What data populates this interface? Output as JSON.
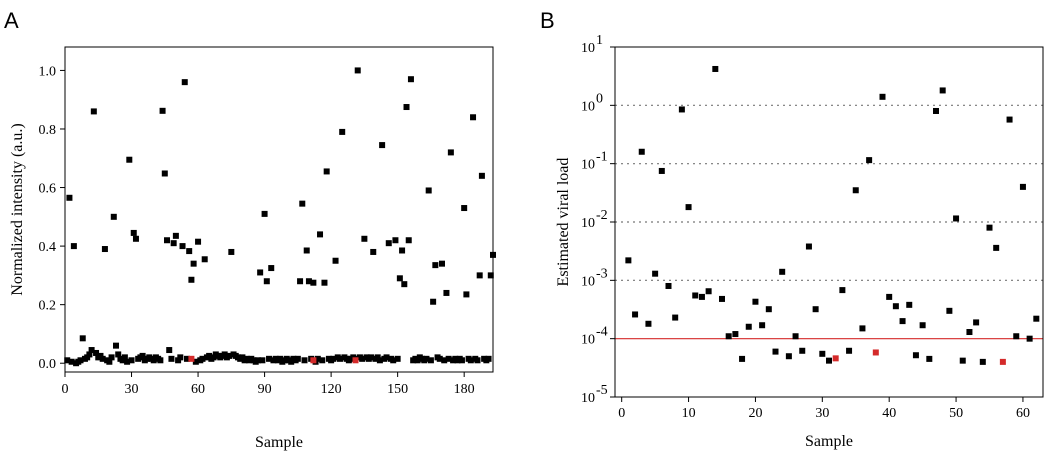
{
  "chart_data": [
    {
      "panel": "A",
      "type": "scatter",
      "xlabel": "Sample",
      "ylabel": "Normalized intensity (a.u.)",
      "xlim": [
        0,
        193
      ],
      "ylim": [
        -0.03,
        1.08
      ],
      "xticks": [
        0,
        30,
        60,
        90,
        120,
        150,
        180
      ],
      "yticks": [
        0.0,
        0.2,
        0.4,
        0.6,
        0.8,
        1.0
      ],
      "ytick_labels": [
        "0.0",
        "0.2",
        "0.4",
        "0.6",
        "0.8",
        "1.0"
      ],
      "marker_color": "#000000",
      "highlight_color": "#d42a2a",
      "series": [
        {
          "values": [
            [
              2,
              0.565
            ],
            [
              4,
              0.4
            ],
            [
              8,
              0.085
            ],
            [
              13,
              0.86
            ],
            [
              18,
              0.39
            ],
            [
              22,
              0.5
            ],
            [
              23,
              0.06
            ],
            [
              29,
              0.695
            ],
            [
              31,
              0.445
            ],
            [
              32,
              0.425
            ],
            [
              44,
              0.862
            ],
            [
              45,
              0.648
            ],
            [
              46,
              0.42
            ],
            [
              49,
              0.41
            ],
            [
              50,
              0.435
            ],
            [
              53,
              0.4
            ],
            [
              54,
              0.96
            ],
            [
              56,
              0.383
            ],
            [
              57,
              0.285
            ],
            [
              58,
              0.34
            ],
            [
              60,
              0.415
            ],
            [
              63,
              0.355
            ],
            [
              75,
              0.38
            ],
            [
              88,
              0.31
            ],
            [
              90,
              0.51
            ],
            [
              91,
              0.28
            ],
            [
              93,
              0.325
            ],
            [
              106,
              0.28
            ],
            [
              107,
              0.545
            ],
            [
              109,
              0.385
            ],
            [
              110,
              0.28
            ],
            [
              112,
              0.275
            ],
            [
              115,
              0.44
            ],
            [
              117,
              0.275
            ],
            [
              118,
              0.655
            ],
            [
              122,
              0.35
            ],
            [
              125,
              0.79
            ],
            [
              132,
              1.0
            ],
            [
              135,
              0.425
            ],
            [
              139,
              0.38
            ],
            [
              143,
              0.745
            ],
            [
              146,
              0.41
            ],
            [
              149,
              0.42
            ],
            [
              151,
              0.29
            ],
            [
              152,
              0.385
            ],
            [
              153,
              0.27
            ],
            [
              154,
              0.875
            ],
            [
              155,
              0.42
            ],
            [
              156,
              0.97
            ],
            [
              164,
              0.59
            ],
            [
              166,
              0.21
            ],
            [
              167,
              0.335
            ],
            [
              170,
              0.34
            ],
            [
              172,
              0.24
            ],
            [
              174,
              0.72
            ],
            [
              180,
              0.53
            ],
            [
              181,
              0.235
            ],
            [
              184,
              0.84
            ],
            [
              187,
              0.3
            ],
            [
              188,
              0.64
            ],
            [
              192,
              0.3
            ],
            [
              193,
              0.37
            ],
            [
              1,
              0.01
            ],
            [
              3,
              0.005
            ],
            [
              5,
              0.0
            ],
            [
              6,
              0.005
            ],
            [
              7,
              0.01
            ],
            [
              9,
              0.015
            ],
            [
              10,
              0.02
            ],
            [
              11,
              0.03
            ],
            [
              12,
              0.045
            ],
            [
              14,
              0.035
            ],
            [
              15,
              0.02
            ],
            [
              16,
              0.025
            ],
            [
              17,
              0.015
            ],
            [
              19,
              0.01
            ],
            [
              20,
              0.005
            ],
            [
              21,
              0.02
            ],
            [
              24,
              0.03
            ],
            [
              25,
              0.015
            ],
            [
              26,
              0.01
            ],
            [
              27,
              0.02
            ],
            [
              28,
              0.005
            ],
            [
              30,
              0.01
            ],
            [
              33,
              0.015
            ],
            [
              34,
              0.02
            ],
            [
              35,
              0.025
            ],
            [
              36,
              0.01
            ],
            [
              37,
              0.015
            ],
            [
              38,
              0.02
            ],
            [
              39,
              0.015
            ],
            [
              40,
              0.01
            ],
            [
              41,
              0.02
            ],
            [
              42,
              0.015
            ],
            [
              43,
              0.01
            ],
            [
              47,
              0.045
            ],
            [
              48,
              0.015
            ],
            [
              51,
              0.01
            ],
            [
              52,
              0.02
            ],
            [
              55,
              0.015
            ],
            [
              59,
              0.005
            ],
            [
              61,
              0.01
            ],
            [
              62,
              0.015
            ],
            [
              64,
              0.02
            ],
            [
              65,
              0.025
            ],
            [
              66,
              0.015
            ],
            [
              67,
              0.02
            ],
            [
              68,
              0.03
            ],
            [
              69,
              0.025
            ],
            [
              70,
              0.02
            ],
            [
              71,
              0.025
            ],
            [
              72,
              0.03
            ],
            [
              73,
              0.02
            ],
            [
              74,
              0.025
            ],
            [
              76,
              0.03
            ],
            [
              77,
              0.025
            ],
            [
              78,
              0.02
            ],
            [
              79,
              0.015
            ],
            [
              80,
              0.02
            ],
            [
              81,
              0.01
            ],
            [
              82,
              0.015
            ],
            [
              83,
              0.01
            ],
            [
              84,
              0.015
            ],
            [
              85,
              0.01
            ],
            [
              86,
              0.005
            ],
            [
              87,
              0.01
            ],
            [
              89,
              0.01
            ],
            [
              92,
              0.015
            ],
            [
              94,
              0.01
            ],
            [
              95,
              0.015
            ],
            [
              96,
              0.01
            ],
            [
              97,
              0.015
            ],
            [
              98,
              0.005
            ],
            [
              99,
              0.01
            ],
            [
              100,
              0.015
            ],
            [
              101,
              0.01
            ],
            [
              102,
              0.005
            ],
            [
              103,
              0.015
            ],
            [
              104,
              0.01
            ],
            [
              105,
              0.015
            ],
            [
              108,
              0.01
            ],
            [
              111,
              0.015
            ],
            [
              113,
              0.005
            ],
            [
              114,
              0.015
            ],
            [
              116,
              0.01
            ],
            [
              119,
              0.015
            ],
            [
              120,
              0.01
            ],
            [
              121,
              0.015
            ],
            [
              123,
              0.02
            ],
            [
              124,
              0.015
            ],
            [
              126,
              0.02
            ],
            [
              127,
              0.015
            ],
            [
              128,
              0.01
            ],
            [
              129,
              0.015
            ],
            [
              130,
              0.02
            ],
            [
              131,
              0.015
            ],
            [
              133,
              0.02
            ],
            [
              134,
              0.015
            ],
            [
              136,
              0.02
            ],
            [
              137,
              0.015
            ],
            [
              138,
              0.02
            ],
            [
              140,
              0.015
            ],
            [
              141,
              0.02
            ],
            [
              142,
              0.01
            ],
            [
              144,
              0.015
            ],
            [
              145,
              0.02
            ],
            [
              147,
              0.015
            ],
            [
              148,
              0.01
            ],
            [
              150,
              0.015
            ],
            [
              157,
              0.01
            ],
            [
              158,
              0.015
            ],
            [
              159,
              0.01
            ],
            [
              160,
              0.02
            ],
            [
              161,
              0.015
            ],
            [
              162,
              0.01
            ],
            [
              163,
              0.015
            ],
            [
              165,
              0.01
            ],
            [
              168,
              0.02
            ],
            [
              169,
              0.015
            ],
            [
              171,
              0.01
            ],
            [
              173,
              0.015
            ],
            [
              175,
              0.01
            ],
            [
              176,
              0.015
            ],
            [
              177,
              0.01
            ],
            [
              178,
              0.015
            ],
            [
              179,
              0.01
            ],
            [
              182,
              0.015
            ],
            [
              183,
              0.01
            ],
            [
              185,
              0.015
            ],
            [
              186,
              0.01
            ],
            [
              189,
              0.015
            ],
            [
              190,
              0.01
            ],
            [
              191,
              0.015
            ]
          ]
        },
        {
          "highlight": true,
          "values": [
            [
              57,
              0.015
            ],
            [
              112,
              0.01
            ],
            [
              131,
              0.01
            ]
          ]
        }
      ]
    },
    {
      "panel": "B",
      "type": "scatter",
      "xlabel": "Sample",
      "ylabel": "Estimated viral load",
      "xlim": [
        -1,
        63
      ],
      "ylim_exponent": [
        -5,
        1
      ],
      "yscale": "log",
      "xticks": [
        0,
        10,
        20,
        30,
        40,
        50,
        60
      ],
      "ytick_exponents": [
        -5,
        -4,
        -3,
        -2,
        -1,
        0,
        1
      ],
      "gridlines_dotted_exponents": [
        -3,
        -2,
        -1,
        0
      ],
      "threshold_line": 0.0001,
      "threshold_color": "#d42a2a",
      "marker_color": "#000000",
      "highlight_color": "#d42a2a",
      "series": [
        {
          "values": [
            [
              1,
              0.0022
            ],
            [
              2,
              0.00026
            ],
            [
              3,
              0.16
            ],
            [
              4,
              0.00018
            ],
            [
              5,
              0.0013
            ],
            [
              6,
              0.075
            ],
            [
              7,
              0.0008
            ],
            [
              8,
              0.00023
            ],
            [
              9,
              0.85
            ],
            [
              10,
              0.018
            ],
            [
              11,
              0.00055
            ],
            [
              12,
              0.00052
            ],
            [
              13,
              0.00065
            ],
            [
              14,
              4.2
            ],
            [
              15,
              0.00048
            ],
            [
              16,
              0.00011
            ],
            [
              17,
              0.00012
            ],
            [
              18,
              4.5e-05
            ],
            [
              19,
              0.00016
            ],
            [
              20,
              0.00043
            ],
            [
              21,
              0.00017
            ],
            [
              22,
              0.00032
            ],
            [
              23,
              6e-05
            ],
            [
              24,
              0.0014
            ],
            [
              25,
              5e-05
            ],
            [
              26,
              0.00011
            ],
            [
              27,
              6.2e-05
            ],
            [
              28,
              0.0038
            ],
            [
              29,
              0.00032
            ],
            [
              30,
              5.5e-05
            ],
            [
              31,
              4.2e-05
            ],
            [
              33,
              0.00068
            ],
            [
              34,
              6.2e-05
            ],
            [
              35,
              0.035
            ],
            [
              36,
              0.00015
            ],
            [
              37,
              0.115
            ],
            [
              39,
              1.4
            ],
            [
              40,
              0.00052
            ],
            [
              41,
              0.00036
            ],
            [
              42,
              0.0002
            ],
            [
              43,
              0.00038
            ],
            [
              44,
              5.2e-05
            ],
            [
              45,
              0.00017
            ],
            [
              46,
              4.5e-05
            ],
            [
              47,
              0.8
            ],
            [
              48,
              1.8
            ],
            [
              49,
              0.0003
            ],
            [
              50,
              0.0115
            ],
            [
              51,
              4.2e-05
            ],
            [
              52,
              0.00013
            ],
            [
              53,
              0.00019
            ],
            [
              54,
              4e-05
            ],
            [
              55,
              0.008
            ],
            [
              56,
              0.0036
            ],
            [
              58,
              0.57
            ],
            [
              59,
              0.00011
            ],
            [
              60,
              0.04
            ],
            [
              61,
              0.0001
            ],
            [
              62,
              0.00022
            ]
          ]
        },
        {
          "highlight": true,
          "values": [
            [
              32,
              4.6e-05
            ],
            [
              38,
              5.8e-05
            ],
            [
              57,
              4e-05
            ]
          ]
        }
      ]
    }
  ]
}
